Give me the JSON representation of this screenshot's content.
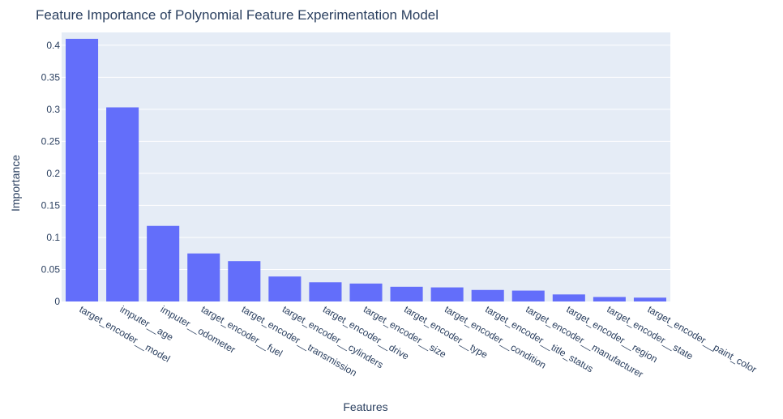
{
  "chart_data": {
    "type": "bar",
    "title": "Feature Importance of Polynomial Feature Experimentation Model",
    "xlabel": "Features",
    "ylabel": "Importance",
    "categories": [
      "target_encoder__model",
      "imputer__age",
      "imputer__odometer",
      "target_encoder__fuel",
      "target_encoder__transmission",
      "target_encoder__cylinders",
      "target_encoder__drive",
      "target_encoder__size",
      "target_encoder__type",
      "target_encoder__condition",
      "target_encoder__title_status",
      "target_encoder__manufacturer",
      "target_encoder__region",
      "target_encoder__state",
      "target_encoder__paint_color"
    ],
    "values": [
      0.41,
      0.303,
      0.118,
      0.075,
      0.063,
      0.039,
      0.03,
      0.028,
      0.023,
      0.022,
      0.018,
      0.017,
      0.011,
      0.007,
      0.006
    ],
    "ylim": [
      0,
      0.42
    ],
    "yticks": [
      0,
      0.05,
      0.1,
      0.15,
      0.2,
      0.25,
      0.3,
      0.35,
      0.4
    ],
    "ytick_labels": [
      "0",
      "0.05",
      "0.1",
      "0.15",
      "0.2",
      "0.25",
      "0.3",
      "0.35",
      "0.4"
    ],
    "grid": true,
    "colors": {
      "bar": "#636efa",
      "plot_bg": "#e5ecf6",
      "grid": "#ffffff",
      "text": "#2a3f5f"
    }
  }
}
